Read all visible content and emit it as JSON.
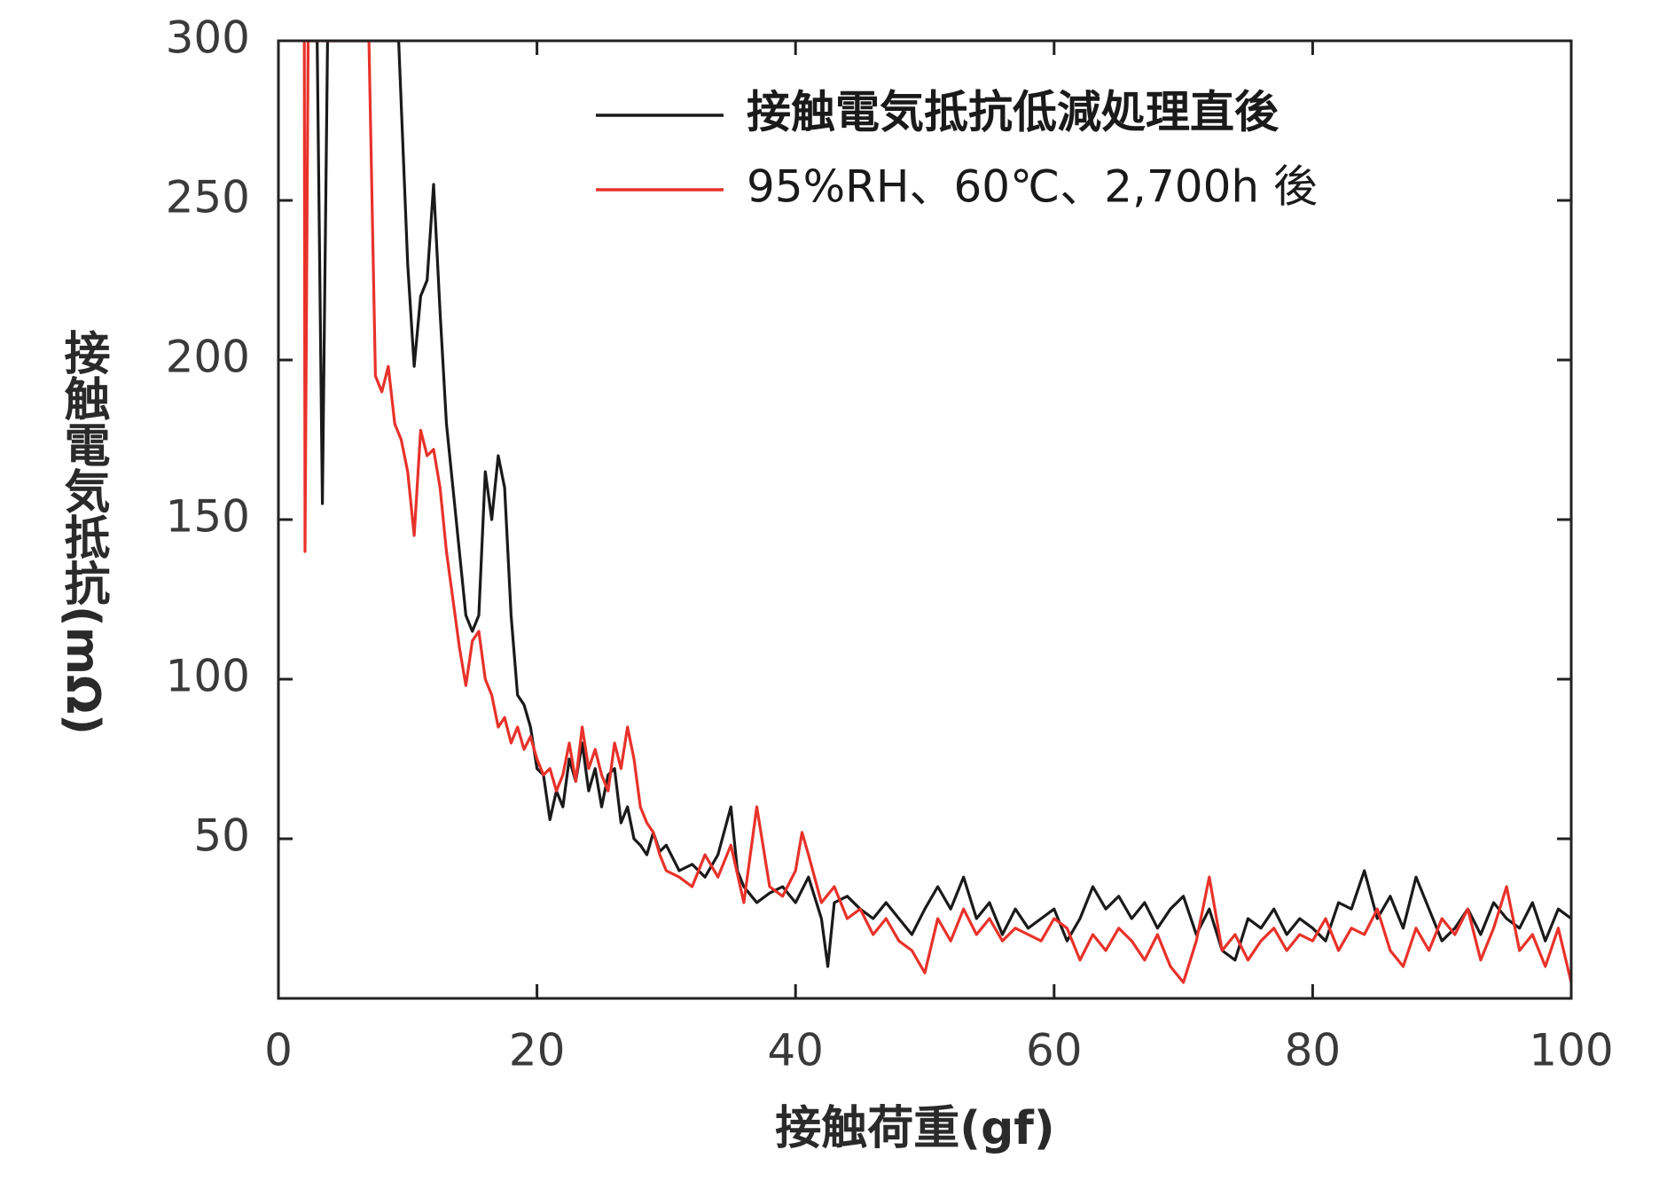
{
  "chart_data": {
    "type": "line",
    "xlabel": "接触荷重(gf)",
    "ylabel": "接触電気抵抗(mΩ)",
    "xlim": [
      0,
      100
    ],
    "ylim": [
      0,
      300
    ],
    "xticks": [
      0,
      20,
      40,
      60,
      80,
      100
    ],
    "yticks": [
      50,
      100,
      150,
      200,
      250,
      300
    ],
    "legend": "upper right",
    "series": [
      {
        "name": "接触電気抵抗低減処理直後",
        "color": "#1a1a1a",
        "x": [
          2.5,
          3,
          3.4,
          3.8,
          5,
          7,
          9.3,
          10,
          10.5,
          11,
          11.5,
          12,
          12.5,
          13,
          13.5,
          14,
          14.5,
          15,
          15.5,
          16,
          16.5,
          17,
          17.5,
          18,
          18.5,
          19,
          19.5,
          20,
          20.5,
          21,
          21.5,
          22,
          22.5,
          23,
          23.5,
          24,
          24.5,
          25,
          25.5,
          26,
          26.5,
          27,
          27.5,
          28,
          28.5,
          29,
          29.5,
          30,
          31,
          32,
          33,
          34,
          35,
          35.5,
          36,
          37,
          38,
          39,
          40,
          41,
          42,
          42.5,
          43,
          44,
          45,
          46,
          47,
          48,
          49,
          50,
          51,
          52,
          53,
          54,
          55,
          56,
          57,
          58,
          59,
          60,
          61,
          62,
          63,
          64,
          65,
          66,
          67,
          68,
          69,
          70,
          71,
          72,
          73,
          74,
          75,
          76,
          77,
          78,
          79,
          80,
          81,
          82,
          83,
          84,
          85,
          86,
          87,
          88,
          89,
          90,
          91,
          92,
          93,
          94,
          95,
          96,
          97,
          98,
          99,
          100
        ],
        "values": [
          300,
          300,
          155,
          300,
          300,
          300,
          300,
          230,
          198,
          220,
          225,
          255,
          215,
          180,
          160,
          140,
          120,
          115,
          120,
          165,
          150,
          170,
          160,
          120,
          95,
          92,
          85,
          72,
          70,
          56,
          65,
          60,
          75,
          68,
          80,
          65,
          72,
          60,
          70,
          72,
          55,
          60,
          50,
          48,
          45,
          52,
          46,
          48,
          40,
          42,
          38,
          45,
          60,
          40,
          35,
          30,
          33,
          35,
          30,
          38,
          25,
          10,
          30,
          32,
          28,
          25,
          30,
          25,
          20,
          28,
          35,
          28,
          38,
          25,
          30,
          20,
          28,
          22,
          25,
          28,
          18,
          25,
          35,
          28,
          32,
          25,
          30,
          22,
          28,
          32,
          20,
          28,
          15,
          12,
          25,
          22,
          28,
          20,
          25,
          22,
          18,
          30,
          28,
          40,
          25,
          32,
          22,
          38,
          28,
          18,
          22,
          28,
          20,
          30,
          25,
          22,
          30,
          18,
          28,
          25
        ]
      },
      {
        "name": "95%RH、60℃、2,700h 後",
        "color": "#e8322a",
        "x": [
          2,
          2.06,
          2.3,
          5,
          7,
          7.5,
          8,
          8.5,
          9,
          9.5,
          10,
          10.5,
          11,
          11.5,
          12,
          12.5,
          13,
          13.5,
          14,
          14.5,
          15,
          15.5,
          16,
          16.5,
          17,
          17.5,
          18,
          18.5,
          19,
          19.5,
          20,
          20.5,
          21,
          21.5,
          22,
          22.5,
          23,
          23.5,
          24,
          24.5,
          25,
          25.5,
          26,
          26.5,
          27,
          27.5,
          28,
          28.5,
          29,
          29.5,
          30,
          31,
          32,
          33,
          34,
          35,
          36,
          37,
          38,
          39,
          40,
          40.5,
          41,
          42,
          43,
          44,
          45,
          46,
          47,
          48,
          49,
          50,
          51,
          52,
          53,
          54,
          55,
          56,
          57,
          58,
          59,
          60,
          61,
          62,
          63,
          64,
          65,
          66,
          67,
          68,
          69,
          70,
          71,
          72,
          73,
          74,
          75,
          76,
          77,
          78,
          79,
          80,
          81,
          82,
          83,
          84,
          85,
          86,
          87,
          88,
          89,
          90,
          91,
          92,
          93,
          94,
          95,
          96,
          97,
          98,
          99,
          100
        ],
        "values": [
          300,
          140,
          300,
          300,
          300,
          195,
          190,
          198,
          180,
          175,
          165,
          145,
          178,
          170,
          172,
          160,
          140,
          125,
          110,
          98,
          112,
          115,
          100,
          95,
          85,
          88,
          80,
          85,
          78,
          82,
          75,
          70,
          72,
          65,
          70,
          80,
          68,
          85,
          72,
          78,
          70,
          65,
          80,
          72,
          85,
          75,
          60,
          55,
          52,
          45,
          40,
          38,
          35,
          45,
          38,
          48,
          30,
          60,
          35,
          32,
          40,
          52,
          45,
          30,
          35,
          25,
          28,
          20,
          25,
          18,
          15,
          8,
          25,
          18,
          28,
          20,
          25,
          18,
          22,
          20,
          18,
          25,
          22,
          12,
          20,
          15,
          22,
          18,
          12,
          20,
          10,
          5,
          18,
          38,
          15,
          20,
          12,
          18,
          22,
          15,
          20,
          18,
          25,
          15,
          22,
          20,
          28,
          15,
          10,
          22,
          15,
          25,
          20,
          28,
          12,
          22,
          35,
          15,
          20,
          10,
          22,
          5
        ]
      }
    ]
  }
}
